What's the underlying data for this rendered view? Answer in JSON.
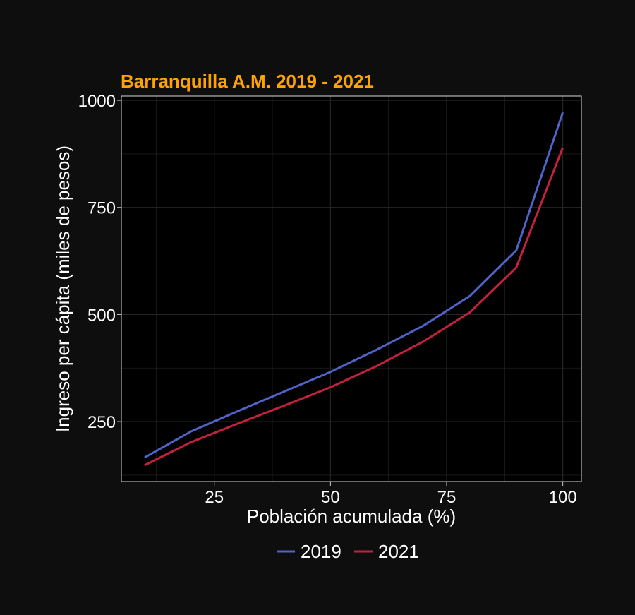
{
  "chart_data": {
    "type": "line",
    "title": "Barranquilla A.M. 2019 - 2021",
    "xlabel": "Población acumulada (%)",
    "ylabel": "Ingreso per cápita (miles de pesos)",
    "xlim": [
      5,
      104
    ],
    "ylim": [
      110,
      1010
    ],
    "x_ticks": [
      25,
      50,
      75,
      100
    ],
    "y_ticks": [
      250,
      500,
      750,
      1000
    ],
    "grid": true,
    "legend_position": "bottom",
    "x": [
      10,
      20,
      30,
      40,
      50,
      60,
      70,
      80,
      90,
      100
    ],
    "series": [
      {
        "name": "2019",
        "color": "#4f63c9",
        "values": [
          166,
          227,
          274,
          320,
          366,
          418,
          474,
          543,
          650,
          972
        ]
      },
      {
        "name": "2021",
        "color": "#c4213e",
        "values": [
          148,
          202,
          245,
          287,
          330,
          380,
          437,
          505,
          610,
          890
        ]
      }
    ],
    "colors": {
      "background": "#0e0e0e",
      "panel": "#000000",
      "grid": "#262626",
      "panel_border": "#d9d9d9",
      "title": "#ffa300",
      "text": "#ffffff"
    }
  }
}
